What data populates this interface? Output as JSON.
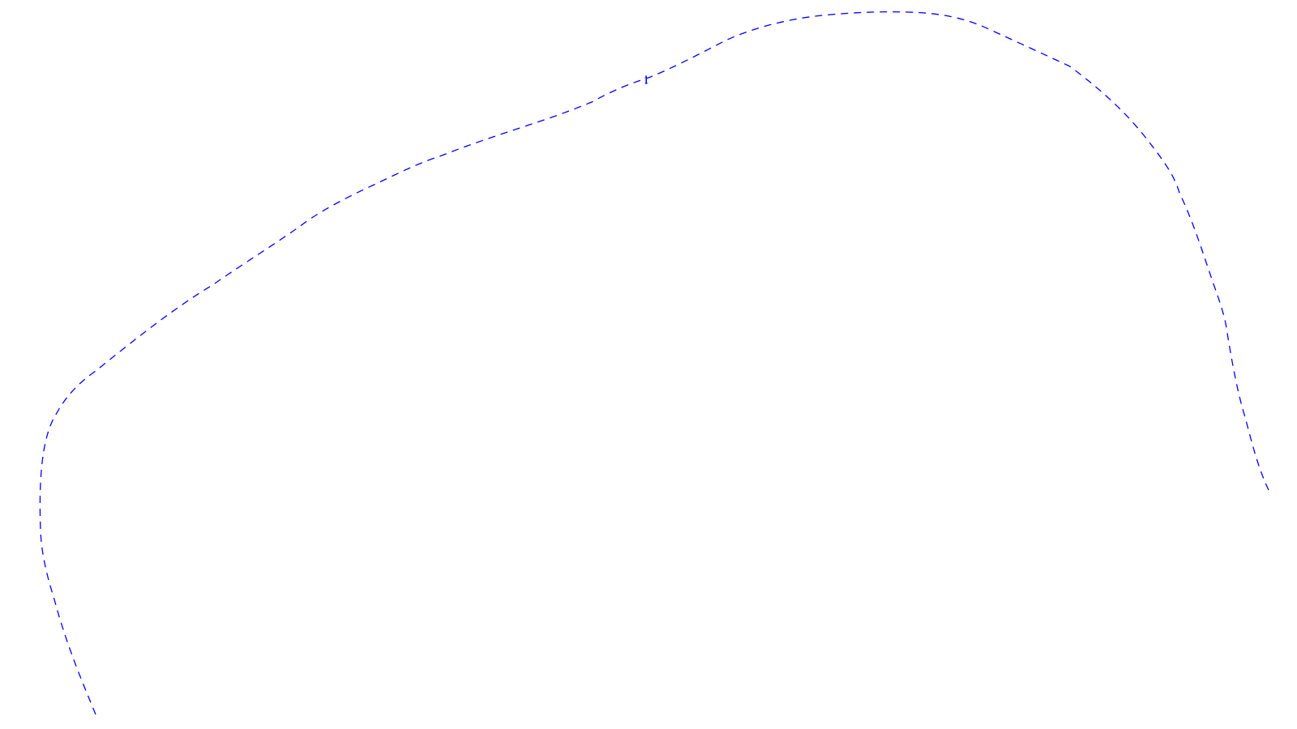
{
  "diagram": {
    "stroke_color": "#0000ff",
    "background_color": "#ffffff",
    "line_style": "dashed",
    "marker": {
      "label": "1"
    }
  }
}
